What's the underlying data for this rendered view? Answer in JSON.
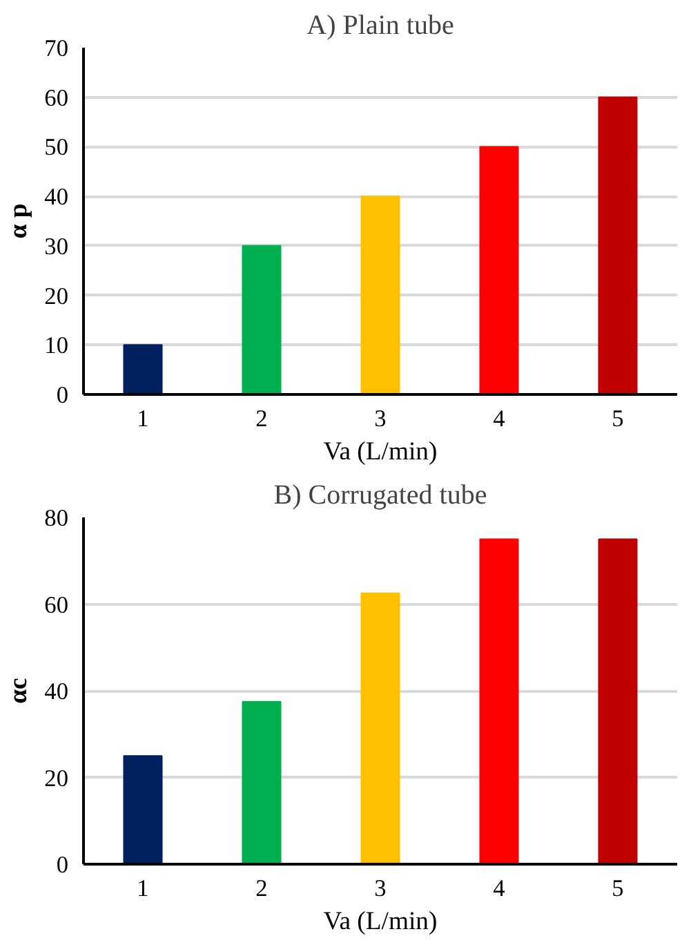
{
  "chart_data": [
    {
      "type": "bar",
      "title": "A) Plain tube",
      "xlabel": "Va (L/min)",
      "ylabel": "α p",
      "categories": [
        "1",
        "2",
        "3",
        "4",
        "5"
      ],
      "values": [
        10,
        30,
        40,
        50,
        60
      ],
      "colors": [
        "#002060",
        "#00b050",
        "#ffc000",
        "#ff0000",
        "#c00000"
      ],
      "ylim": [
        0,
        70
      ],
      "yticks": [
        0,
        10,
        20,
        30,
        40,
        50,
        60,
        70
      ],
      "grid": "y"
    },
    {
      "type": "bar",
      "title": "B) Corrugated tube",
      "xlabel": "Va (L/min)",
      "ylabel": "αc",
      "categories": [
        "1",
        "2",
        "3",
        "4",
        "5"
      ],
      "values": [
        25,
        37.5,
        62.5,
        75,
        75
      ],
      "colors": [
        "#002060",
        "#00b050",
        "#ffc000",
        "#ff0000",
        "#c00000"
      ],
      "ylim": [
        0,
        80
      ],
      "yticks": [
        0,
        20,
        40,
        60,
        80
      ],
      "grid": "y"
    }
  ]
}
